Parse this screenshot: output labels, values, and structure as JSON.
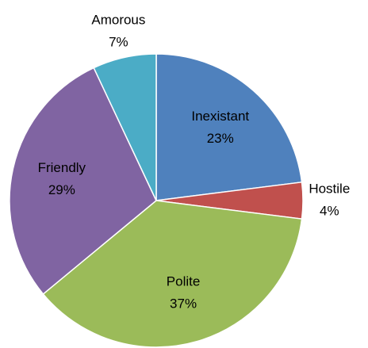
{
  "chart_data": {
    "type": "pie",
    "categories": [
      "Inexistant",
      "Hostile",
      "Polite",
      "Friendly",
      "Amorous"
    ],
    "values": [
      23,
      4,
      37,
      29,
      7
    ],
    "value_labels": [
      "23%",
      "4%",
      "37%",
      "29%",
      "7%"
    ],
    "colors": [
      "#4f81bd",
      "#c0504d",
      "#9bbb59",
      "#8064a2",
      "#4bacc6"
    ]
  }
}
